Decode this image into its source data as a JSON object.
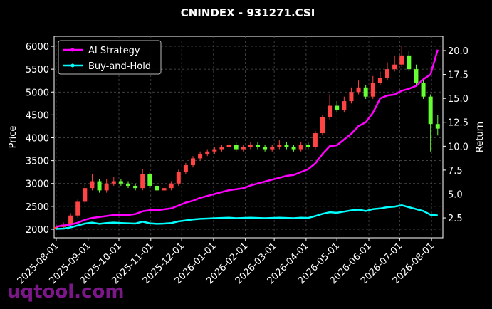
{
  "chart_data": {
    "type": "candlestick",
    "title": "CNINDEX - 931271.CSI",
    "ylabel": "Price",
    "y2label": "Return",
    "x": [
      "2025-08-01",
      "2025-08-08",
      "2025-08-15",
      "2025-08-22",
      "2025-08-29",
      "2025-09-05",
      "2025-09-12",
      "2025-09-19",
      "2025-09-26",
      "2025-10-03",
      "2025-10-10",
      "2025-10-17",
      "2025-10-24",
      "2025-10-31",
      "2025-11-07",
      "2025-11-14",
      "2025-11-21",
      "2025-11-28",
      "2025-12-05",
      "2025-12-12",
      "2025-12-19",
      "2025-12-26",
      "2026-01-02",
      "2026-01-09",
      "2026-01-16",
      "2026-01-23",
      "2026-01-30",
      "2026-02-06",
      "2026-02-13",
      "2026-02-20",
      "2026-02-27",
      "2026-03-06",
      "2026-03-13",
      "2026-03-20",
      "2026-03-27",
      "2026-04-03",
      "2026-04-10",
      "2026-04-17",
      "2026-04-24",
      "2026-05-01",
      "2026-05-08",
      "2026-05-15",
      "2026-05-22",
      "2026-05-29",
      "2026-06-05",
      "2026-06-12",
      "2026-06-19",
      "2026-06-26",
      "2026-07-03",
      "2026-07-10",
      "2026-07-17",
      "2026-07-24",
      "2026-07-31",
      "2026-08-07"
    ],
    "open": [
      2000,
      2050,
      2100,
      2300,
      2600,
      2900,
      3050,
      2850,
      3000,
      3050,
      3000,
      2950,
      2900,
      3200,
      2950,
      2850,
      2900,
      3000,
      3250,
      3400,
      3550,
      3650,
      3700,
      3750,
      3800,
      3850,
      3750,
      3800,
      3850,
      3800,
      3750,
      3800,
      3850,
      3800,
      3750,
      3850,
      3800,
      4100,
      4450,
      4700,
      4600,
      4800,
      5000,
      5100,
      4900,
      5200,
      5300,
      5500,
      5600,
      5800,
      5500,
      5200,
      4900,
      4300
    ],
    "high": [
      2100,
      2150,
      2350,
      2650,
      3000,
      3200,
      3100,
      3100,
      3150,
      3100,
      3050,
      3000,
      3320,
      3250,
      3000,
      2950,
      3050,
      3300,
      3450,
      3600,
      3700,
      3750,
      3800,
      3850,
      3950,
      3900,
      3850,
      3900,
      3900,
      3850,
      3850,
      3950,
      3900,
      3850,
      3900,
      3900,
      4150,
      4500,
      4950,
      4800,
      4900,
      5100,
      5250,
      5150,
      5350,
      5450,
      5650,
      5800,
      6000,
      5900,
      5600,
      5300,
      4950,
      4500
    ],
    "low": [
      1990,
      2000,
      2050,
      2250,
      2550,
      2850,
      2800,
      2800,
      2950,
      2950,
      2900,
      2850,
      2850,
      2900,
      2800,
      2800,
      2850,
      2950,
      3200,
      3350,
      3500,
      3600,
      3650,
      3700,
      3750,
      3700,
      3700,
      3750,
      3750,
      3700,
      3700,
      3750,
      3750,
      3700,
      3700,
      3750,
      3750,
      4050,
      4400,
      4550,
      4550,
      4750,
      4950,
      4850,
      4850,
      5150,
      5250,
      5450,
      5550,
      5450,
      5150,
      4850,
      3700,
      4050
    ],
    "close": [
      2050,
      2100,
      2300,
      2600,
      2900,
      3050,
      2850,
      3000,
      3050,
      3000,
      2950,
      2900,
      3200,
      2950,
      2850,
      2900,
      3000,
      3250,
      3400,
      3550,
      3650,
      3700,
      3750,
      3800,
      3850,
      3750,
      3800,
      3850,
      3800,
      3750,
      3800,
      3850,
      3800,
      3750,
      3850,
      3800,
      4100,
      4450,
      4700,
      4600,
      4800,
      5000,
      5100,
      4900,
      5200,
      5300,
      5500,
      5600,
      5800,
      5500,
      5200,
      4900,
      4300,
      4200
    ],
    "up_color": "#ff4444",
    "down_color": "#66ff33",
    "series": [
      {
        "name": "AI Strategy",
        "color": "#ff00ff",
        "axis": "y2",
        "values": [
          1.6,
          1.7,
          1.8,
          2.0,
          2.3,
          2.5,
          2.6,
          2.7,
          2.8,
          2.8,
          2.8,
          2.9,
          3.2,
          3.3,
          3.3,
          3.4,
          3.5,
          3.8,
          4.1,
          4.3,
          4.6,
          4.8,
          5.0,
          5.2,
          5.4,
          5.5,
          5.6,
          5.9,
          6.1,
          6.3,
          6.5,
          6.7,
          6.9,
          7.0,
          7.3,
          7.6,
          8.2,
          9.2,
          10.0,
          10.1,
          10.7,
          11.3,
          12.1,
          12.5,
          13.5,
          15.0,
          15.3,
          15.4,
          15.8,
          16.0,
          16.3,
          17.0,
          17.5,
          20.1
        ]
      },
      {
        "name": "Buy-and-Hold",
        "color": "#00ffff",
        "axis": "y2",
        "values": [
          1.35,
          1.38,
          1.51,
          1.71,
          1.91,
          2.01,
          1.88,
          1.97,
          2.01,
          1.97,
          1.94,
          1.91,
          2.11,
          1.94,
          1.88,
          1.91,
          1.97,
          2.14,
          2.24,
          2.34,
          2.4,
          2.43,
          2.47,
          2.5,
          2.53,
          2.47,
          2.5,
          2.53,
          2.5,
          2.47,
          2.5,
          2.53,
          2.5,
          2.47,
          2.53,
          2.5,
          2.7,
          2.93,
          3.09,
          3.03,
          3.16,
          3.29,
          3.36,
          3.22,
          3.42,
          3.49,
          3.62,
          3.68,
          3.82,
          3.62,
          3.42,
          3.22,
          2.83,
          2.76
        ]
      }
    ],
    "xlim": [
      "2025-07-30",
      "2026-08-12"
    ],
    "xticks": [
      "2025-08-01",
      "2025-09-01",
      "2025-10-01",
      "2025-11-01",
      "2025-12-01",
      "2026-01-01",
      "2026-02-01",
      "2026-03-01",
      "2026-04-01",
      "2026-05-01",
      "2026-06-01",
      "2026-07-01",
      "2026-08-01"
    ],
    "ylim": [
      1813,
      6218
    ],
    "yticks": [
      2000,
      2500,
      3000,
      3500,
      4000,
      4500,
      5000,
      5500,
      6000
    ],
    "y2lim": [
      0.42,
      21.49
    ],
    "y2ticks": [
      2.5,
      {
        "value": 5,
        "label": "5.0"
      },
      7.5,
      {
        "value": 10,
        "label": "10.0"
      },
      12.5,
      {
        "value": 15,
        "label": "15.0"
      },
      17.5,
      {
        "value": 20,
        "label": "20.0"
      }
    ],
    "grid": true,
    "legend": "upper left"
  },
  "watermark": "uqtool.com"
}
